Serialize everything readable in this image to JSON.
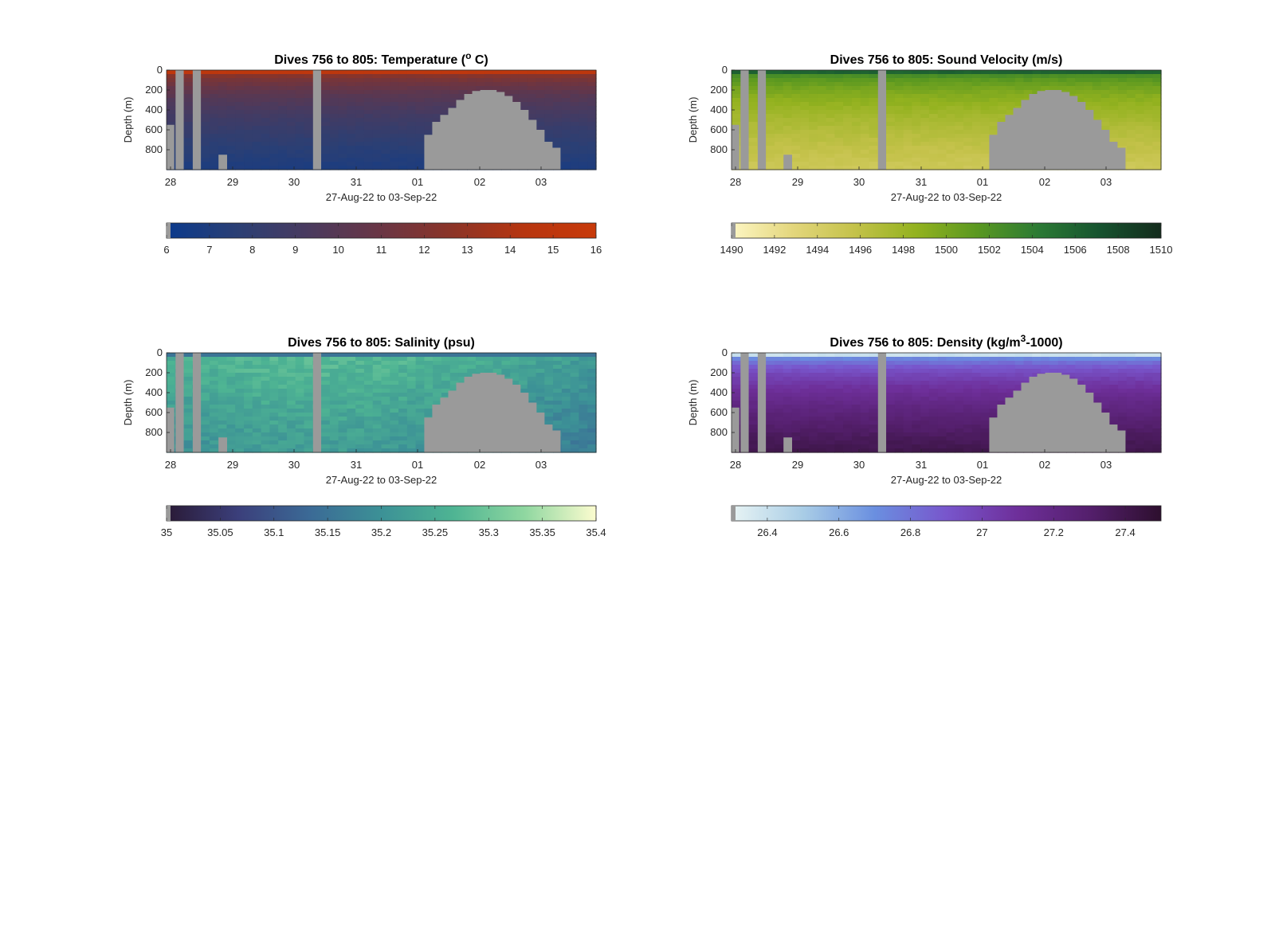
{
  "figure": {
    "date_axis_label": "27-Aug-22 to 03-Sep-22",
    "depth_axis_label": "Depth (m)",
    "x_ticks": [
      "28",
      "29",
      "30",
      "31",
      "01",
      "02",
      "03"
    ],
    "y_ticks": [
      "0",
      "200",
      "400",
      "600",
      "800"
    ]
  },
  "chart_data": [
    {
      "type": "heatmap",
      "title": "Dives 756 to 805: Temperature (",
      "title_super": "o",
      "title_tail": " C)",
      "xlabel": "27-Aug-22 to 03-Sep-22",
      "ylabel": "Depth (m)",
      "x_range": [
        "27-Aug-22 20:00",
        "03-Sep-22 21:00"
      ],
      "y_range": [
        0,
        1000
      ],
      "y_reversed": true,
      "colorbar": {
        "range": [
          6,
          16
        ],
        "ticks": [
          "6",
          "7",
          "8",
          "9",
          "10",
          "11",
          "12",
          "13",
          "14",
          "15",
          "16"
        ],
        "colormap": [
          "#0b3a8c",
          "#2b3f74",
          "#4a3a5e",
          "#6a3544",
          "#8c3427",
          "#b7350f",
          "#c83a0a"
        ]
      },
      "surface_value": 15,
      "deep_value": 7,
      "missing_color": "#9a9a9a"
    },
    {
      "type": "heatmap",
      "title": "Dives 756 to 805: Sound Velocity (m/s)",
      "title_super": "",
      "title_tail": "",
      "xlabel": "27-Aug-22 to 03-Sep-22",
      "ylabel": "Depth (m)",
      "x_range": [
        "27-Aug-22 20:00",
        "03-Sep-22 21:00"
      ],
      "y_range": [
        0,
        1000
      ],
      "y_reversed": true,
      "colorbar": {
        "range": [
          1490,
          1510
        ],
        "ticks": [
          "1490",
          "1492",
          "1494",
          "1496",
          "1498",
          "1500",
          "1502",
          "1504",
          "1506",
          "1508",
          "1510"
        ],
        "colormap": [
          "#fdf6c3",
          "#e3d67c",
          "#c4c24a",
          "#93b21f",
          "#5a9820",
          "#2b7a34",
          "#16532f",
          "#132b1c"
        ]
      },
      "surface_value": 1506,
      "deep_value": 1495,
      "missing_color": "#9a9a9a"
    },
    {
      "type": "heatmap",
      "title": "Dives 756 to 805: Salinity (psu)",
      "title_super": "",
      "title_tail": "",
      "xlabel": "27-Aug-22 to 03-Sep-22",
      "ylabel": "Depth (m)",
      "x_range": [
        "27-Aug-22 20:00",
        "03-Sep-22 21:00"
      ],
      "y_range": [
        0,
        1000
      ],
      "y_reversed": true,
      "colorbar": {
        "range": [
          35,
          35.4
        ],
        "ticks": [
          "35",
          "35.05",
          "35.1",
          "35.15",
          "35.2",
          "35.25",
          "35.3",
          "35.35",
          "35.4"
        ],
        "colormap": [
          "#2a1a36",
          "#3b3f7b",
          "#3b6a96",
          "#3c9196",
          "#4eb493",
          "#8fd7a0",
          "#fcfccf"
        ]
      },
      "surface_value": 35.22,
      "deep_value": 35.2,
      "missing_color": "#9a9a9a"
    },
    {
      "type": "heatmap",
      "title": "Dives 756 to 805: Density (kg/m",
      "title_super": "3",
      "title_tail": "-1000)",
      "xlabel": "27-Aug-22 to 03-Sep-22",
      "ylabel": "Depth (m)",
      "x_range": [
        "27-Aug-22 20:00",
        "03-Sep-22 21:00"
      ],
      "y_range": [
        0,
        1000
      ],
      "y_reversed": true,
      "colorbar": {
        "range": [
          26.3,
          27.5
        ],
        "ticks": [
          "26.4",
          "26.6",
          "26.8",
          "27",
          "27.2",
          "27.4"
        ],
        "colormap": [
          "#e8f4f4",
          "#a9cde6",
          "#6a8fe0",
          "#7856cc",
          "#6e2f9a",
          "#541f6c",
          "#2d0f2e"
        ]
      },
      "surface_value": 26.4,
      "deep_value": 27.4,
      "missing_color": "#9a9a9a"
    }
  ]
}
